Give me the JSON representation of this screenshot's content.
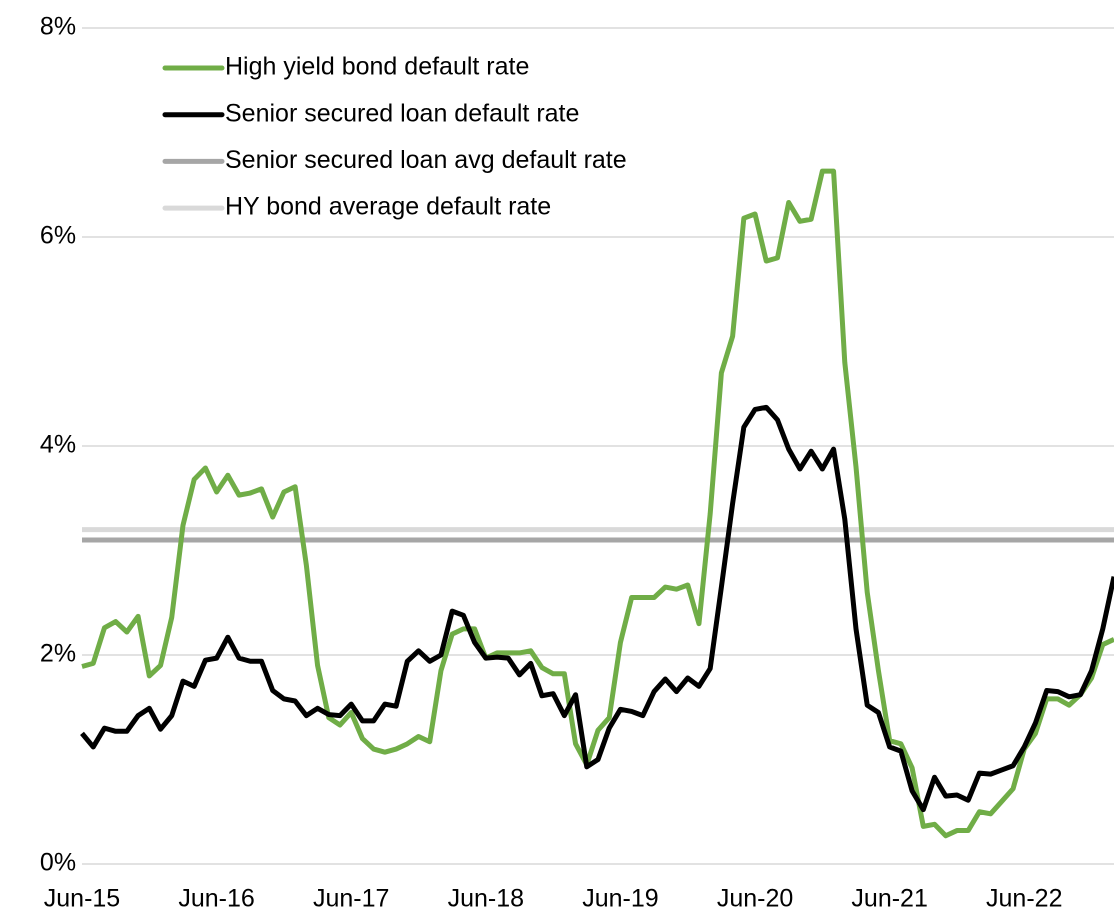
{
  "chart_data": {
    "type": "line",
    "categories": [
      "Jun-15",
      null,
      null,
      null,
      null,
      null,
      null,
      null,
      null,
      null,
      null,
      null,
      "Jun-16",
      null,
      null,
      null,
      null,
      null,
      null,
      null,
      null,
      null,
      null,
      null,
      "Jun-17",
      null,
      null,
      null,
      null,
      null,
      null,
      null,
      null,
      null,
      null,
      null,
      "Jun-18",
      null,
      null,
      null,
      null,
      null,
      null,
      null,
      null,
      null,
      null,
      null,
      "Jun-19",
      null,
      null,
      null,
      null,
      null,
      null,
      null,
      null,
      null,
      null,
      null,
      "Jun-20",
      null,
      null,
      null,
      null,
      null,
      null,
      null,
      null,
      null,
      null,
      null,
      "Jun-21",
      null,
      null,
      null,
      null,
      null,
      null,
      null,
      null,
      null,
      null,
      null,
      "Jun-22",
      null,
      null,
      null,
      null,
      null,
      null,
      null,
      null
    ],
    "series": [
      {
        "name": "High yield bond default rate",
        "color": "#70ad47",
        "values": [
          1.89,
          1.92,
          2.26,
          2.32,
          2.22,
          2.37,
          1.8,
          1.9,
          2.36,
          3.24,
          3.68,
          3.79,
          3.56,
          3.72,
          3.53,
          3.55,
          3.59,
          3.32,
          3.56,
          3.61,
          2.86,
          1.9,
          1.4,
          1.33,
          1.45,
          1.2,
          1.1,
          1.07,
          1.1,
          1.15,
          1.22,
          1.17,
          1.85,
          2.2,
          2.25,
          2.25,
          1.97,
          2.02,
          2.02,
          2.02,
          2.04,
          1.88,
          1.82,
          1.82,
          1.15,
          0.95,
          1.28,
          1.4,
          2.12,
          2.55,
          2.55,
          2.55,
          2.65,
          2.63,
          2.67,
          2.3,
          3.35,
          4.7,
          5.05,
          6.18,
          6.22,
          5.77,
          5.8,
          6.33,
          6.15,
          6.17,
          6.63,
          6.63,
          4.8,
          3.8,
          2.6,
          1.85,
          1.18,
          1.15,
          0.92,
          0.36,
          0.38,
          0.27,
          0.32,
          0.32,
          0.5,
          0.48,
          0.6,
          0.72,
          1.1,
          1.25,
          1.58,
          1.58,
          1.52,
          1.62,
          1.78,
          2.1,
          2.15
        ]
      },
      {
        "name": "Senior secured loan default rate",
        "color": "#000000",
        "values": [
          1.25,
          1.12,
          1.3,
          1.27,
          1.27,
          1.42,
          1.49,
          1.29,
          1.42,
          1.75,
          1.7,
          1.95,
          1.97,
          2.17,
          1.97,
          1.94,
          1.94,
          1.66,
          1.58,
          1.56,
          1.42,
          1.49,
          1.43,
          1.42,
          1.53,
          1.37,
          1.37,
          1.53,
          1.51,
          1.94,
          2.04,
          1.94,
          2.0,
          2.42,
          2.38,
          2.12,
          1.97,
          1.98,
          1.97,
          1.81,
          1.92,
          1.61,
          1.63,
          1.42,
          1.62,
          0.93,
          1.0,
          1.3,
          1.48,
          1.46,
          1.42,
          1.65,
          1.77,
          1.65,
          1.78,
          1.7,
          1.87,
          2.65,
          3.45,
          4.18,
          4.35,
          4.37,
          4.25,
          3.97,
          3.78,
          3.95,
          3.78,
          3.97,
          3.3,
          2.25,
          1.52,
          1.45,
          1.12,
          1.08,
          0.7,
          0.52,
          0.83,
          0.65,
          0.66,
          0.61,
          0.87,
          0.86,
          0.9,
          0.94,
          1.12,
          1.35,
          1.66,
          1.65,
          1.6,
          1.62,
          1.85,
          2.25,
          2.75
        ]
      },
      {
        "name": "Senior secured loan avg default rate",
        "color": "#a6a6a6",
        "value": 3.1
      },
      {
        "name": "HY bond average default rate",
        "color": "#d9d9d9",
        "value": 3.2
      }
    ],
    "ylim": [
      0,
      8
    ],
    "yticks": [
      {
        "value": 0,
        "label": "0%"
      },
      {
        "value": 2,
        "label": "2%"
      },
      {
        "value": 4,
        "label": "4%"
      },
      {
        "value": 6,
        "label": "6%"
      },
      {
        "value": 8,
        "label": "8%"
      }
    ],
    "grid": true
  }
}
